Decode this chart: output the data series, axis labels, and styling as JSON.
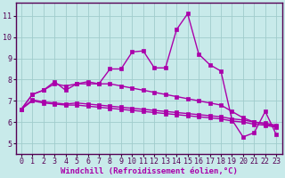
{
  "background_color": "#c8eaea",
  "grid_color": "#a0cccc",
  "line_color": "#aa00aa",
  "marker": "s",
  "markersize": 2.5,
  "linewidth": 1.0,
  "xlabel": "Windchill (Refroidissement éolien,°C)",
  "xlabel_fontsize": 6.5,
  "tick_fontsize": 6,
  "ylim": [
    4.5,
    11.6
  ],
  "xlim": [
    -0.5,
    23.5
  ],
  "yticks": [
    5,
    6,
    7,
    8,
    9,
    10,
    11
  ],
  "xticks": [
    0,
    1,
    2,
    3,
    4,
    5,
    6,
    7,
    8,
    9,
    10,
    11,
    12,
    13,
    14,
    15,
    16,
    17,
    18,
    19,
    20,
    21,
    22,
    23
  ],
  "series": [
    [
      6.6,
      7.3,
      7.5,
      7.9,
      7.5,
      7.8,
      7.9,
      7.8,
      8.5,
      8.5,
      9.3,
      9.35,
      8.55,
      8.55,
      10.35,
      11.1,
      9.2,
      8.7,
      8.4,
      6.1,
      5.3,
      5.5,
      6.5,
      5.4
    ],
    [
      6.6,
      7.3,
      7.5,
      7.8,
      7.7,
      7.8,
      7.8,
      7.8,
      7.8,
      7.7,
      7.6,
      7.5,
      7.4,
      7.3,
      7.2,
      7.1,
      7.0,
      6.9,
      6.8,
      6.5,
      6.2,
      6.0,
      5.9,
      5.8
    ],
    [
      6.6,
      7.05,
      6.95,
      6.9,
      6.85,
      6.9,
      6.85,
      6.8,
      6.75,
      6.7,
      6.65,
      6.6,
      6.55,
      6.5,
      6.45,
      6.4,
      6.35,
      6.3,
      6.25,
      6.15,
      6.1,
      6.0,
      5.95,
      5.85
    ],
    [
      6.6,
      7.0,
      6.9,
      6.85,
      6.8,
      6.8,
      6.75,
      6.7,
      6.65,
      6.6,
      6.55,
      6.5,
      6.45,
      6.4,
      6.35,
      6.3,
      6.25,
      6.2,
      6.15,
      6.05,
      6.0,
      5.9,
      5.85,
      5.75
    ]
  ]
}
